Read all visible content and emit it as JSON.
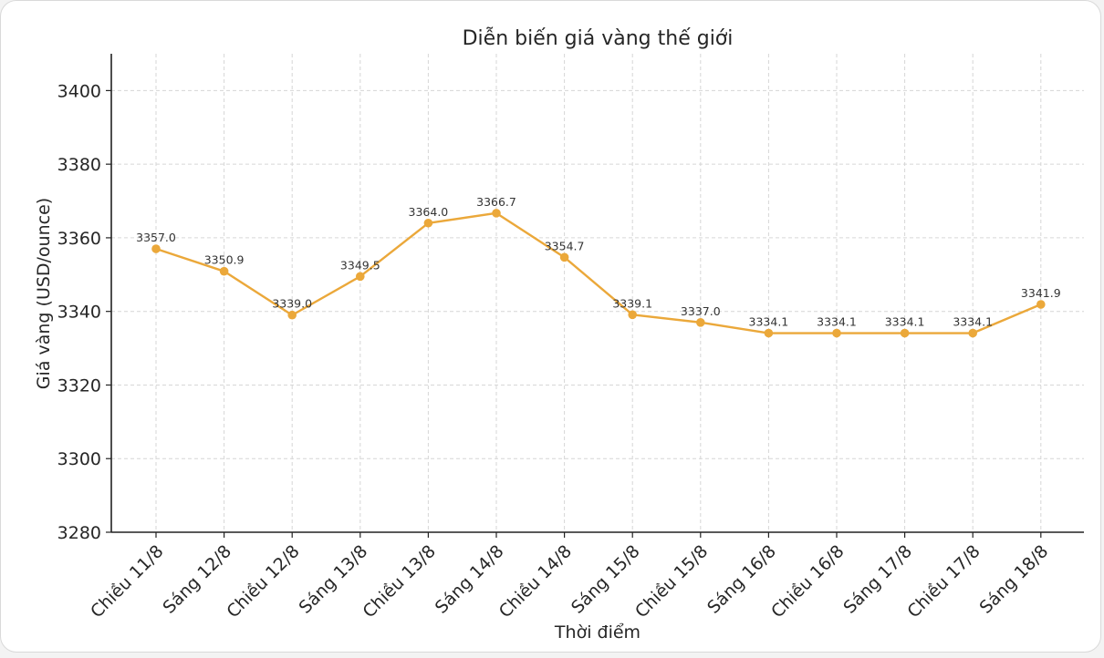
{
  "chart_data": {
    "type": "line",
    "title": "Diễn biến giá vàng thế giới",
    "xlabel": "Thời điểm",
    "ylabel": "Giá vàng (USD/ounce)",
    "categories": [
      "Chiều 11/8",
      "Sáng 12/8",
      "Chiều 12/8",
      "Sáng 13/8",
      "Chiều 13/8",
      "Sáng 14/8",
      "Chiều 14/8",
      "Sáng 15/8",
      "Chiều 15/8",
      "Sáng 16/8",
      "Chiều 16/8",
      "Sáng 17/8",
      "Chiều 17/8",
      "Sáng 18/8"
    ],
    "values": [
      3357.0,
      3350.9,
      3339.0,
      3349.5,
      3364.0,
      3366.7,
      3354.7,
      3339.1,
      3337.0,
      3334.1,
      3334.1,
      3334.1,
      3334.1,
      3341.9
    ],
    "data_labels": [
      "3357.0",
      "3350.9",
      "3339.0",
      "3349.5",
      "3364.0",
      "3366.7",
      "3354.7",
      "3339.1",
      "3337.0",
      "3334.1",
      "3334.1",
      "3334.1",
      "3334.1",
      "3341.9"
    ],
    "ylim": [
      3280,
      3410
    ],
    "yticks": [
      3280,
      3300,
      3320,
      3340,
      3360,
      3380,
      3400
    ],
    "grid": true,
    "line_color": "#eba83a"
  }
}
